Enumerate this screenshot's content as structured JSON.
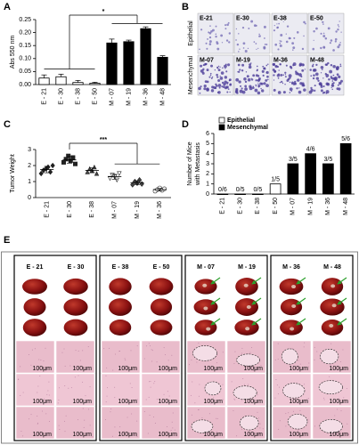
{
  "chart_data": [
    {
      "type": "bar",
      "label": "A",
      "y_label": [
        "Abs 550 nm"
      ],
      "categories": [
        "E - 21",
        "E - 30",
        "E - 38",
        "E - 50",
        "M - 07",
        "M - 19",
        "M - 36",
        "M - 48"
      ],
      "values": [
        0.025,
        0.03,
        0.008,
        0.005,
        0.16,
        0.165,
        0.215,
        0.105
      ],
      "errors": [
        0.012,
        0.01,
        0.008,
        0.004,
        0.015,
        0.006,
        0.007,
        0.006
      ],
      "colors": [
        "#ffffff",
        "#ffffff",
        "#ffffff",
        "#ffffff",
        "#000000",
        "#000000",
        "#000000",
        "#000000"
      ],
      "ylim": [
        0,
        0.25
      ],
      "yticks": [
        {
          "value": 0,
          "label": "0.00"
        },
        {
          "value": 0.05,
          "label": "0.05"
        },
        {
          "value": 0.1,
          "label": "0.10"
        },
        {
          "value": 0.15,
          "label": "0.15"
        },
        {
          "value": 0.2,
          "label": "0.20"
        },
        {
          "value": 0.25,
          "label": "0.25"
        }
      ],
      "annotation": "*"
    },
    {
      "type": "dot",
      "label": "C",
      "y_label": [
        "Tumor Weight"
      ],
      "categories": [
        "E - 21",
        "E - 30",
        "E - 38",
        "M - 07",
        "M - 19",
        "M - 36"
      ],
      "values": [
        [
          1.5,
          1.7,
          1.8,
          1.9,
          1.6,
          2.0
        ],
        [
          2.2,
          2.4,
          2.6,
          2.3,
          2.5,
          2.1
        ],
        [
          1.6,
          1.8,
          1.7,
          1.9,
          1.5
        ],
        [
          1.2,
          1.4,
          1.3,
          1.1,
          1.5
        ],
        [
          0.8,
          1.0,
          0.9,
          1.1,
          0.85
        ],
        [
          0.4,
          0.5,
          0.6,
          0.45,
          0.55
        ]
      ],
      "means": [
        1.75,
        2.35,
        1.7,
        1.3,
        0.93,
        0.5
      ],
      "errors": [
        0.2,
        0.2,
        0.15,
        0.15,
        0.12,
        0.08
      ],
      "markers": [
        "diamond",
        "square",
        "triangle",
        "triangle-down",
        "diamond",
        "circle"
      ],
      "fills": [
        "#222222",
        "#222222",
        "#444444",
        "#ffffff",
        "#444444",
        "#ffffff"
      ],
      "ylim": [
        0,
        3
      ],
      "yticks": [
        0,
        1,
        2,
        3
      ],
      "annotation": "***"
    },
    {
      "type": "bar",
      "label": "D",
      "y_label": [
        "Number of Mice",
        "with Metastasis"
      ],
      "categories": [
        "E - 21",
        "E - 30",
        "E - 38",
        "E - 50",
        "M - 07",
        "M - 19",
        "M - 36",
        "M - 48"
      ],
      "series": [
        {
          "name": "Epithelial",
          "color": "#ffffff",
          "values": [
            0,
            0,
            0,
            1,
            null,
            null,
            null,
            null
          ],
          "value_labels": [
            "0/6",
            "0/5",
            "0/5",
            "1/5",
            null,
            null,
            null,
            null
          ]
        },
        {
          "name": "Mesenchymal",
          "color": "#000000",
          "values": [
            null,
            null,
            null,
            null,
            3,
            4,
            3,
            5
          ],
          "value_labels": [
            null,
            null,
            null,
            null,
            "3/5",
            "4/6",
            "3/5",
            "5/6"
          ]
        }
      ],
      "ylim": [
        0,
        6
      ],
      "yticks": [
        0,
        1,
        2,
        3,
        4,
        5,
        6
      ],
      "legend": "upper left"
    }
  ],
  "panel_b": {
    "label": "B",
    "rows": [
      "Epithelial",
      "Mesenchymal"
    ],
    "images": [
      [
        "E-21",
        "E-30",
        "E-38",
        "E-50"
      ],
      [
        "M-07",
        "M-19",
        "M-36",
        "M-48"
      ]
    ]
  },
  "panel_e": {
    "label": "E",
    "groups": [
      [
        "E - 21",
        "E - 30"
      ],
      [
        "E - 38",
        "E - 50"
      ],
      [
        "M - 07",
        "M - 19"
      ],
      [
        "M - 36",
        "M - 48"
      ]
    ],
    "scale_bar": "100μm"
  }
}
